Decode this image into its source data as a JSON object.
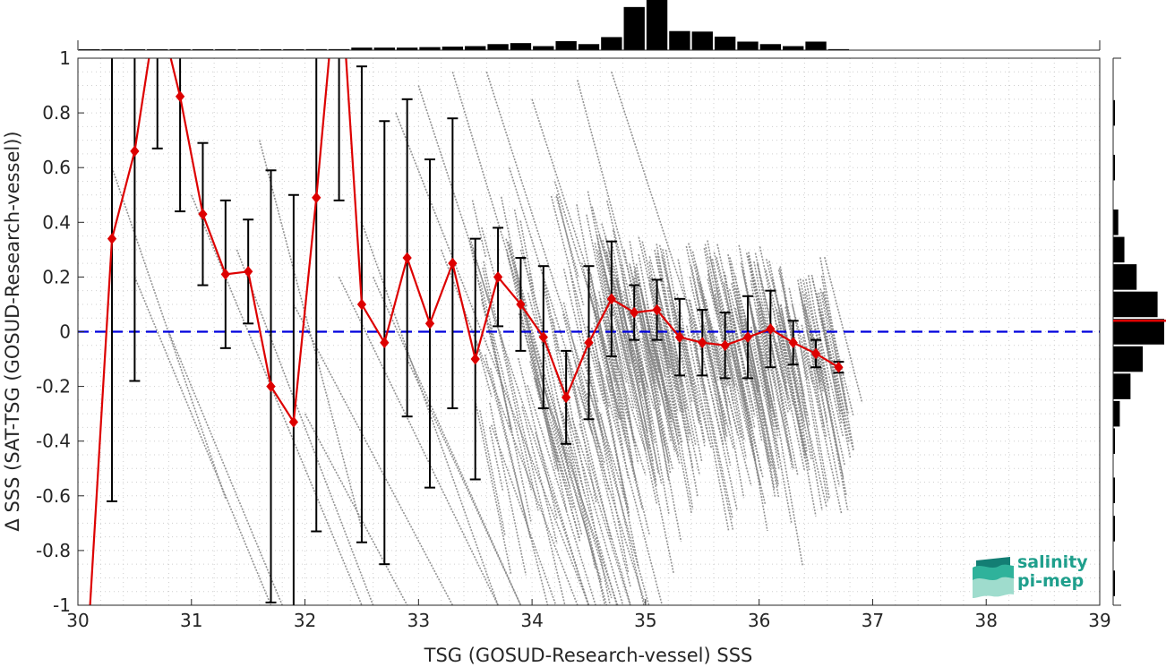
{
  "chart_data": {
    "type": "scatter",
    "xlabel": "TSG (GOSUD-Research-vessel) SSS",
    "ylabel": "Δ SSS (SAT-TSG (GOSUD-Research-vessel))",
    "xlim": [
      30,
      39
    ],
    "ylim": [
      -1,
      1
    ],
    "x_ticks": [
      "30",
      "31",
      "32",
      "33",
      "34",
      "35",
      "36",
      "37",
      "38",
      "39"
    ],
    "y_ticks": [
      "-1",
      "-0.8",
      "-0.6",
      "-0.4",
      "-0.2",
      "0",
      "0.2",
      "0.4",
      "0.6",
      "0.8",
      "1"
    ],
    "grid": true,
    "zero_line": {
      "y": 0,
      "color": "#0000dd",
      "style": "dashed"
    },
    "scatter_color": "#808080",
    "binned_mean_color": "#dd0000",
    "errorbar_color": "#000000",
    "binned_stats": [
      {
        "x": 30.1,
        "mean": -1.05,
        "std": 0
      },
      {
        "x": 30.3,
        "mean": 0.34,
        "std": 0.96
      },
      {
        "x": 30.5,
        "mean": 0.66,
        "std": 0.84
      },
      {
        "x": 30.7,
        "mean": 1.2,
        "std": 0.53
      },
      {
        "x": 30.9,
        "mean": 0.86,
        "std": 0.42
      },
      {
        "x": 31.1,
        "mean": 0.43,
        "std": 0.26
      },
      {
        "x": 31.3,
        "mean": 0.21,
        "std": 0.27
      },
      {
        "x": 31.5,
        "mean": 0.22,
        "std": 0.19
      },
      {
        "x": 31.7,
        "mean": -0.2,
        "std": 0.79
      },
      {
        "x": 31.9,
        "mean": -0.33,
        "std": 0.83
      },
      {
        "x": 32.1,
        "mean": 0.49,
        "std": 1.22
      },
      {
        "x": 32.3,
        "mean": 1.4,
        "std": 0.92
      },
      {
        "x": 32.5,
        "mean": 0.1,
        "std": 0.87
      },
      {
        "x": 32.7,
        "mean": -0.04,
        "std": 0.81
      },
      {
        "x": 32.9,
        "mean": 0.27,
        "std": 0.58
      },
      {
        "x": 33.1,
        "mean": 0.03,
        "std": 0.6
      },
      {
        "x": 33.3,
        "mean": 0.25,
        "std": 0.53
      },
      {
        "x": 33.5,
        "mean": -0.1,
        "std": 0.44
      },
      {
        "x": 33.7,
        "mean": 0.2,
        "std": 0.18
      },
      {
        "x": 33.9,
        "mean": 0.1,
        "std": 0.17
      },
      {
        "x": 34.1,
        "mean": -0.02,
        "std": 0.26
      },
      {
        "x": 34.3,
        "mean": -0.24,
        "std": 0.17
      },
      {
        "x": 34.5,
        "mean": -0.04,
        "std": 0.28
      },
      {
        "x": 34.7,
        "mean": 0.12,
        "std": 0.21
      },
      {
        "x": 34.9,
        "mean": 0.07,
        "std": 0.1
      },
      {
        "x": 35.1,
        "mean": 0.08,
        "std": 0.11
      },
      {
        "x": 35.3,
        "mean": -0.02,
        "std": 0.14
      },
      {
        "x": 35.5,
        "mean": -0.04,
        "std": 0.12
      },
      {
        "x": 35.7,
        "mean": -0.05,
        "std": 0.12
      },
      {
        "x": 35.9,
        "mean": -0.02,
        "std": 0.15
      },
      {
        "x": 36.1,
        "mean": 0.01,
        "std": 0.14
      },
      {
        "x": 36.3,
        "mean": -0.04,
        "std": 0.08
      },
      {
        "x": 36.5,
        "mean": -0.08,
        "std": 0.05
      },
      {
        "x": 36.7,
        "mean": -0.13,
        "std": 0.02
      }
    ],
    "top_histogram": {
      "bin_centers": [
        30.1,
        30.3,
        30.5,
        30.7,
        30.9,
        31.1,
        31.3,
        31.5,
        31.7,
        31.9,
        32.1,
        32.3,
        32.5,
        32.7,
        32.9,
        33.1,
        33.3,
        33.5,
        33.7,
        33.9,
        34.1,
        34.3,
        34.5,
        34.7,
        34.9,
        35.1,
        35.3,
        35.5,
        35.7,
        35.9,
        36.1,
        36.3,
        36.5,
        36.7
      ],
      "relative_counts": [
        0.01,
        0.01,
        0.01,
        0.01,
        0.01,
        0.01,
        0.01,
        0.01,
        0.01,
        0.01,
        0.02,
        0.02,
        0.05,
        0.05,
        0.05,
        0.06,
        0.07,
        0.08,
        0.12,
        0.14,
        0.08,
        0.18,
        0.12,
        0.26,
        0.86,
        1.0,
        0.38,
        0.37,
        0.27,
        0.17,
        0.12,
        0.08,
        0.17,
        0.02
      ]
    },
    "right_histogram": {
      "bin_centers": [
        -0.9,
        -0.7,
        -0.5,
        -0.3,
        -0.1,
        0.1,
        0.3,
        0.5,
        0.7,
        0.9
      ],
      "relative_counts": [
        0.02,
        0.02,
        0.03,
        0.16,
        0.37,
        0.76,
        0.44,
        0.2,
        0.12,
        0.02
      ],
      "fine_bins": [
        {
          "y": -0.92,
          "v": 0.02
        },
        {
          "y": -0.72,
          "v": 0.02
        },
        {
          "y": -0.58,
          "v": 0.02
        },
        {
          "y": -0.4,
          "v": 0.03
        },
        {
          "y": -0.3,
          "v": 0.13
        },
        {
          "y": -0.2,
          "v": 0.34
        },
        {
          "y": -0.1,
          "v": 0.58
        },
        {
          "y": 0.0,
          "v": 1.0
        },
        {
          "y": 0.1,
          "v": 0.87
        },
        {
          "y": 0.2,
          "v": 0.46
        },
        {
          "y": 0.3,
          "v": 0.22
        },
        {
          "y": 0.4,
          "v": 0.1
        },
        {
          "y": 0.6,
          "v": 0.02
        },
        {
          "y": 0.8,
          "v": 0.02
        }
      ],
      "median_line": {
        "y": 0.04,
        "color": "#dd0000"
      }
    }
  },
  "logo": {
    "line1": "salinity",
    "line2": "pi-mep",
    "color": "#1f9f8c",
    "icon": "salinity-wave-logo-icon"
  }
}
